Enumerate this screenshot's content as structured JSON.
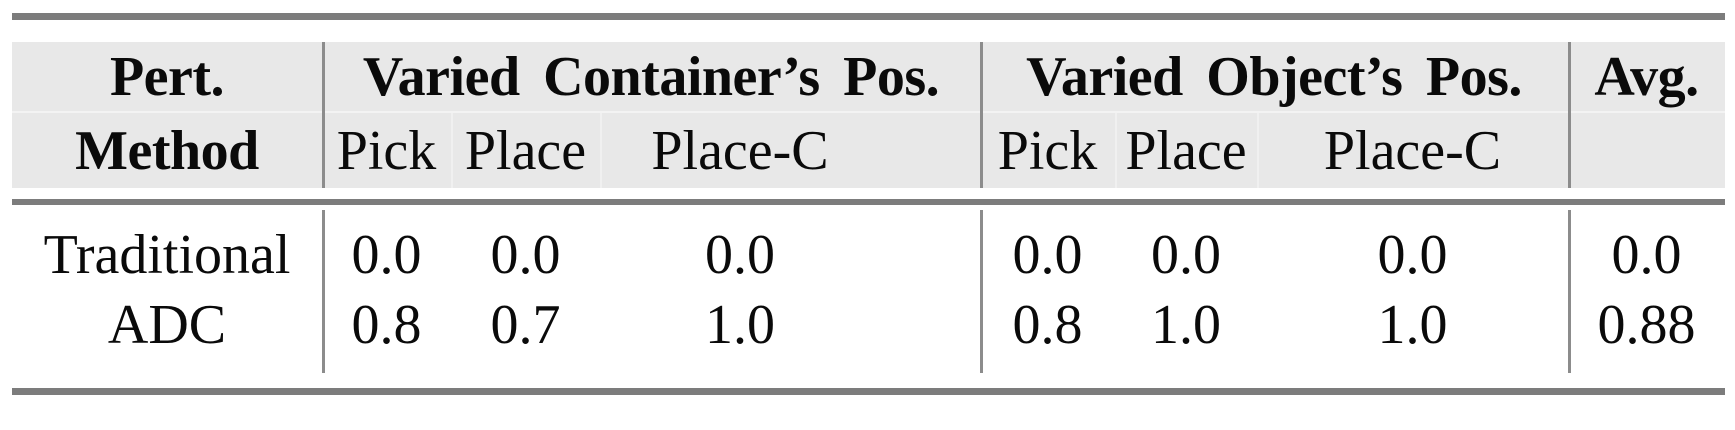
{
  "table": {
    "header": {
      "row_header_line1": "Pert.",
      "row_header_line2": "Method",
      "group1": {
        "label": "Varied Container’s Pos.",
        "sub": [
          "Pick",
          "Place",
          "Place-C"
        ]
      },
      "group2": {
        "label": "Varied Object’s Pos.",
        "sub": [
          "Pick",
          "Place",
          "Place-C"
        ]
      },
      "avg_label": "Avg."
    },
    "rows": [
      {
        "method": "Traditional",
        "g1": [
          "0.0",
          "0.0",
          "0.0"
        ],
        "g2": [
          "0.0",
          "0.0",
          "0.0"
        ],
        "avg": "0.0"
      },
      {
        "method": "ADC",
        "g1": [
          "0.8",
          "0.7",
          "1.0"
        ],
        "g2": [
          "0.8",
          "1.0",
          "1.0"
        ],
        "avg": "0.88"
      }
    ]
  },
  "colors": {
    "header_background": "#e8e8e8",
    "rule_gray": "#7c7c7c",
    "divider_gray": "#8c8c8c",
    "text": "#0a0a0a"
  },
  "chart_data": {
    "type": "table",
    "title": "",
    "row_header": "Pert. Method",
    "column_groups": [
      {
        "name": "Varied Container’s Pos.",
        "columns": [
          "Pick",
          "Place",
          "Place-C"
        ]
      },
      {
        "name": "Varied Object’s Pos.",
        "columns": [
          "Pick",
          "Place",
          "Place-C"
        ]
      }
    ],
    "extra_columns": [
      "Avg."
    ],
    "rows": [
      {
        "method": "Traditional",
        "values": [
          0.0,
          0.0,
          0.0,
          0.0,
          0.0,
          0.0
        ],
        "avg": 0.0
      },
      {
        "method": "ADC",
        "values": [
          0.8,
          0.7,
          1.0,
          0.8,
          1.0,
          1.0
        ],
        "avg": 0.88
      }
    ]
  }
}
